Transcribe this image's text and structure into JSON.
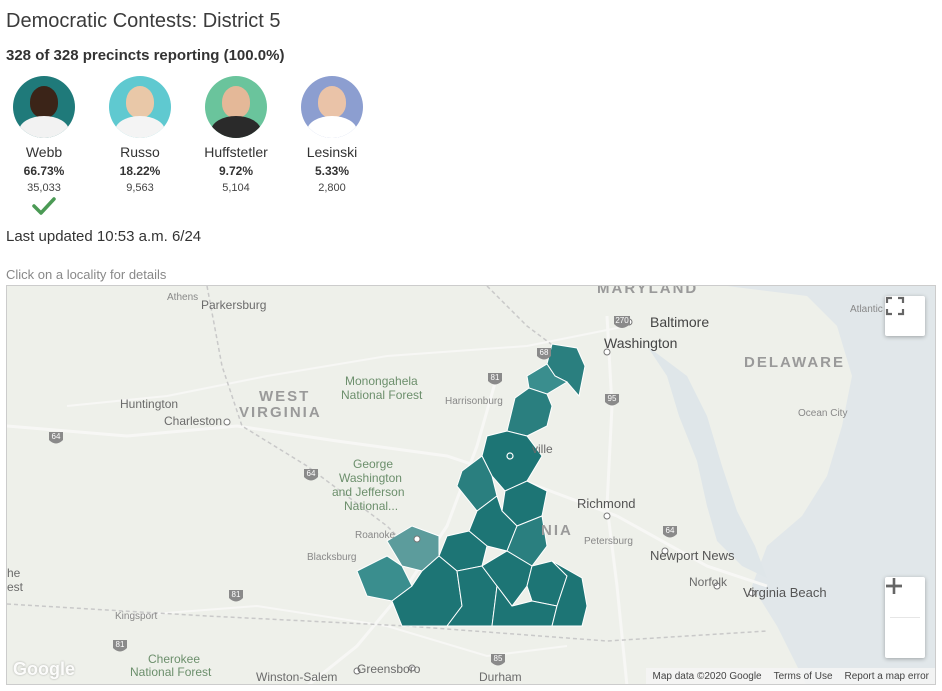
{
  "header": {
    "title": "Democratic Contests: District 5",
    "precincts": "328 of 328 precincts reporting (100.0%)"
  },
  "candidates": [
    {
      "name": "Webb",
      "pct": "66.73%",
      "votes": "35,033",
      "winner": true,
      "bg": "#1f7a7a"
    },
    {
      "name": "Russo",
      "pct": "18.22%",
      "votes": "9,563",
      "winner": false,
      "bg": "#5fc9d0"
    },
    {
      "name": "Huffstetler",
      "pct": "9.72%",
      "votes": "5,104",
      "winner": false,
      "bg": "#6ac49c"
    },
    {
      "name": "Lesinski",
      "pct": "5.33%",
      "votes": "2,800",
      "winner": false,
      "bg": "#8c9ed0"
    }
  ],
  "status": {
    "updated": "Last updated 10:53 a.m. 6/24",
    "hint": "Click on a locality for details"
  },
  "map": {
    "labels": {
      "athens": "Athens",
      "parkersburg": "Parkersburg",
      "maryland": "MARYLAND",
      "baltimore": "Baltimore",
      "washington_dc": "Washington",
      "atlantic": "Atlantic",
      "delaware": "DELAWARE",
      "west": "WEST",
      "virginia_wv": "VIRGINIA",
      "huntington": "Huntington",
      "charleston": "Charleston",
      "monongahela_1": "Monongahela",
      "monongahela_2": "National Forest",
      "harrisonburg": "Harrisonburg",
      "ocean_city": "Ocean City",
      "ville": "ville",
      "gw_1": "George",
      "gw_2": "Washington",
      "gw_3": "and Jefferson",
      "gw_4": "National...",
      "richmond": "Richmond",
      "nia": "NIA",
      "roanoke": "Roanoke",
      "petersburg": "Petersburg",
      "blacksburg": "Blacksburg",
      "newport_news": "Newport News",
      "norfolk": "Norfolk",
      "virginia_beach": "Virginia Beach",
      "he": "he",
      "est": "est",
      "kingsport": "Kingsport",
      "cherokee_1": "Cherokee",
      "cherokee_2": "National Forest",
      "winston_salem": "Winston-Salem",
      "greensboro": "Greensboro",
      "durham": "Durham",
      "google": "Google"
    },
    "shields": {
      "i270": "270",
      "i95a": "95",
      "i81a": "81",
      "i64a": "64",
      "i64b": "64",
      "i64c": "64",
      "i81b": "81",
      "i81c": "81",
      "i85": "85",
      "i68": "68"
    },
    "attribution": {
      "data": "Map data ©2020 Google",
      "terms": "Terms of Use",
      "report": "Report a map error"
    },
    "district_color": "#1d7575",
    "district_light": "#3a8f8f"
  }
}
